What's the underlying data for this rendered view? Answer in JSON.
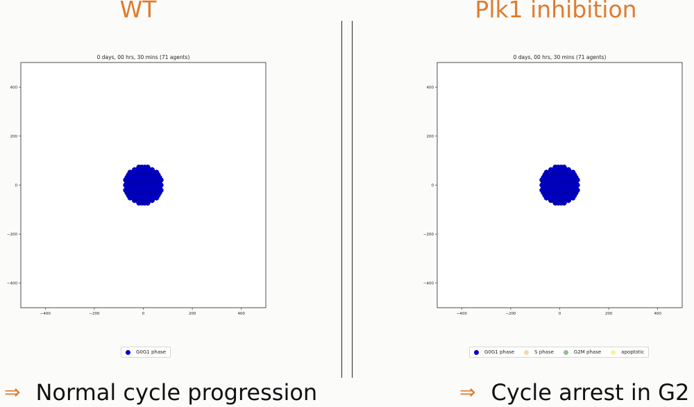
{
  "panels": {
    "wt": {
      "title": "WT",
      "caption": "Normal cycle progression",
      "legend": [
        {
          "label": "G0G1 phase",
          "color": "#0000cc"
        }
      ]
    },
    "plk": {
      "title": "Plk1 inhibition",
      "caption": "Cycle arrest in G2",
      "legend": [
        {
          "label": "G0G1 phase",
          "color": "#0000cc"
        },
        {
          "label": "S phase",
          "color": "#f6d7b0"
        },
        {
          "label": "G2M phase",
          "color": "#8fc08f"
        },
        {
          "label": "apoptotic",
          "color": "#f5f0a0"
        }
      ]
    }
  },
  "caption_arrow": "⇒",
  "chart_data": [
    {
      "type": "scatter",
      "title": "0 days, 00 hrs, 30 mins (71 agents)",
      "xlim": [
        -500,
        500
      ],
      "ylim": [
        -500,
        500
      ],
      "xticks": [
        -400,
        -200,
        0,
        200,
        400
      ],
      "yticks": [
        -400,
        -200,
        0,
        200,
        400
      ],
      "xtick_labels": [
        "−400",
        "−200",
        "0",
        "200",
        "400"
      ],
      "ytick_labels": [
        "−400",
        "−200",
        "0",
        "200",
        "400"
      ],
      "grid": false,
      "series": [
        {
          "name": "G0G1 phase",
          "color": "#0000cc",
          "cluster_center": [
            0,
            0
          ],
          "cluster_radius": 75,
          "agent_count": 71
        }
      ]
    },
    {
      "type": "scatter",
      "title": "0 days, 00 hrs, 30 mins (71 agents)",
      "xlim": [
        -500,
        500
      ],
      "ylim": [
        -500,
        500
      ],
      "xticks": [
        -400,
        -200,
        0,
        200,
        400
      ],
      "yticks": [
        -400,
        -200,
        0,
        200,
        400
      ],
      "xtick_labels": [
        "−400",
        "−200",
        "0",
        "200",
        "400"
      ],
      "ytick_labels": [
        "−400",
        "−200",
        "0",
        "200",
        "400"
      ],
      "grid": false,
      "series": [
        {
          "name": "G0G1 phase",
          "color": "#0000cc",
          "cluster_center": [
            0,
            0
          ],
          "cluster_radius": 75,
          "agent_count": 71
        }
      ]
    }
  ]
}
